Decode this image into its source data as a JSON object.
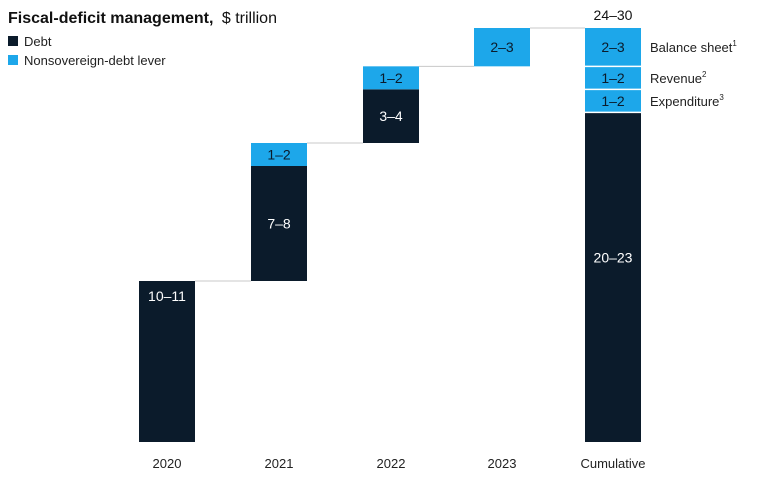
{
  "chart_data": {
    "type": "bar",
    "subtype": "waterfall",
    "title": "Fiscal-deficit management,",
    "title_unit": "$ trillion",
    "legend_position": "top-left",
    "categories": [
      "2020",
      "2021",
      "2022",
      "2023",
      "Cumulative"
    ],
    "series": [
      {
        "name": "Debt",
        "color": "#0b1b2b"
      },
      {
        "name": "Nonsovereign-debt lever",
        "color": "#1da7ea"
      }
    ],
    "segments": [
      {
        "category": "2020",
        "series": "Debt",
        "low": 10,
        "high": 11,
        "label": "10–11",
        "start": 0,
        "end": 10.5
      },
      {
        "category": "2021",
        "series": "Debt",
        "low": 7,
        "high": 8,
        "label": "7–8",
        "start": 10.5,
        "end": 18
      },
      {
        "category": "2021",
        "series": "Nonsovereign-debt lever",
        "low": 1,
        "high": 2,
        "label": "1–2",
        "start": 18,
        "end": 19.5
      },
      {
        "category": "2022",
        "series": "Debt",
        "low": 3,
        "high": 4,
        "label": "3–4",
        "start": 19.5,
        "end": 23
      },
      {
        "category": "2022",
        "series": "Nonsovereign-debt lever",
        "low": 1,
        "high": 2,
        "label": "1–2",
        "start": 23,
        "end": 24.5
      },
      {
        "category": "2023",
        "series": "Nonsovereign-debt lever",
        "low": 2,
        "high": 3,
        "label": "2–3",
        "start": 24.5,
        "end": 27
      },
      {
        "category": "Cumulative",
        "series": "Debt",
        "low": 20,
        "high": 23,
        "label": "20–23",
        "start": 0,
        "end": 21.5
      },
      {
        "category": "Cumulative",
        "series": "Nonsovereign-debt lever",
        "low": 1,
        "high": 2,
        "label": "1–2",
        "start": 21.5,
        "end": 23,
        "side_label": "Expenditure",
        "side_sup": "3"
      },
      {
        "category": "Cumulative",
        "series": "Nonsovereign-debt lever",
        "low": 1,
        "high": 2,
        "label": "1–2",
        "start": 23,
        "end": 24.5,
        "side_label": "Revenue",
        "side_sup": "2"
      },
      {
        "category": "Cumulative",
        "series": "Nonsovereign-debt lever",
        "low": 2,
        "high": 3,
        "label": "2–3",
        "start": 24.5,
        "end": 27,
        "side_label": "Balance sheet",
        "side_sup": "1"
      }
    ],
    "total_label": "24–30",
    "ylim": [
      0,
      27
    ],
    "grid": false
  }
}
